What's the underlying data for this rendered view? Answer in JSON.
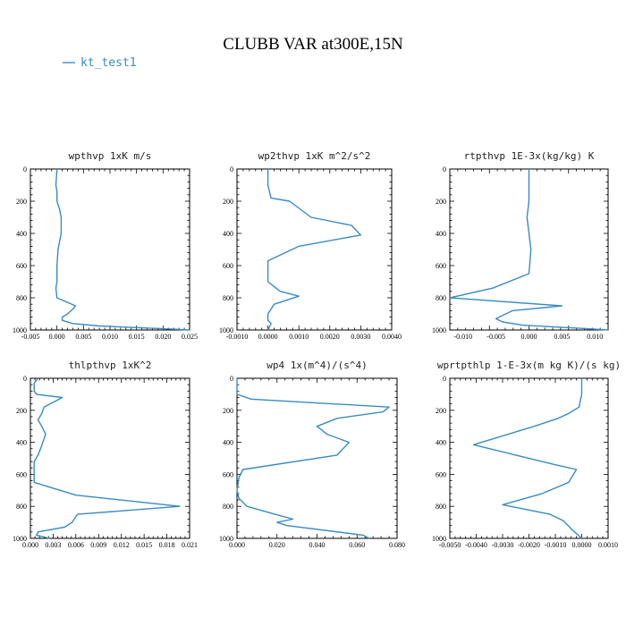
{
  "figure": {
    "title": "CLUBB VAR at300E,15N",
    "legend": {
      "label": "kt_test1",
      "color": "#3a8bc2"
    }
  },
  "chart_data": [
    {
      "type": "line",
      "title": "wpthvp  1xK m/s",
      "xlim": [
        -0.005,
        0.025
      ],
      "ylim": [
        0,
        1000
      ],
      "y_inverted": true,
      "x_ticks": [
        "-0.005",
        "0.000",
        "0.005",
        "0.010",
        "0.015",
        "0.020",
        "0.025"
      ],
      "x_tick_values": [
        -0.005,
        0.0,
        0.005,
        0.01,
        0.015,
        0.02,
        0.025
      ],
      "y_ticks": [
        "0",
        "200",
        "400",
        "600",
        "800",
        "1000"
      ],
      "y_tick_values": [
        0,
        200,
        400,
        600,
        800,
        1000
      ],
      "series": [
        {
          "name": "kt_test1",
          "x": [
            0.0,
            -0.0002,
            0.0,
            0.0,
            0.0005,
            0.0008,
            0.0008,
            0.0005,
            0.0002,
            0.0,
            0.0,
            -0.0002,
            0.0,
            0.0035,
            0.003,
            0.002,
            0.001,
            0.001,
            0.003,
            0.008,
            0.015,
            0.022,
            0.025
          ],
          "y": [
            0,
            100,
            140,
            200,
            250,
            300,
            400,
            450,
            500,
            600,
            700,
            740,
            800,
            850,
            870,
            900,
            920,
            940,
            960,
            975,
            985,
            995,
            1000
          ]
        }
      ]
    },
    {
      "type": "line",
      "title": "wp2thvp  1xK m^2/s^2",
      "xlim": [
        -0.001,
        0.004
      ],
      "ylim": [
        0,
        1000
      ],
      "y_inverted": true,
      "x_ticks": [
        "-0.0010",
        "0.0000",
        "0.0010",
        "0.0020",
        "0.0030",
        "0.0040"
      ],
      "x_tick_values": [
        -0.001,
        0.0,
        0.001,
        0.002,
        0.003,
        0.004
      ],
      "y_ticks": [
        "0",
        "200",
        "400",
        "600",
        "800",
        "1000"
      ],
      "y_tick_values": [
        0,
        200,
        400,
        600,
        800,
        1000
      ],
      "series": [
        {
          "name": "kt_test1",
          "x": [
            0.0,
            0.0,
            0.0001,
            0.0007,
            0.0014,
            0.0027,
            0.003,
            0.001,
            0.0,
            0.0,
            0.0002,
            0.0004,
            0.001,
            0.0002,
            0.0001,
            0.0,
            0.0,
            0.0001,
            0.0
          ],
          "y": [
            0,
            100,
            180,
            200,
            300,
            350,
            410,
            480,
            570,
            700,
            730,
            760,
            790,
            840,
            870,
            900,
            940,
            960,
            1000
          ]
        }
      ]
    },
    {
      "type": "line",
      "title": "rtpthvp  1E-3x(kg/kg) K",
      "xlim": [
        -0.012,
        0.012
      ],
      "ylim": [
        0,
        1000
      ],
      "y_inverted": true,
      "x_ticks": [
        "-0.010",
        "-0.005",
        "0.000",
        "0.005",
        "0.010"
      ],
      "x_tick_values": [
        -0.01,
        -0.005,
        0.0,
        0.005,
        0.01
      ],
      "y_ticks": [
        "0",
        "200",
        "400",
        "600",
        "800",
        "1000"
      ],
      "y_tick_values": [
        0,
        200,
        400,
        600,
        800,
        1000
      ],
      "series": [
        {
          "name": "kt_test1",
          "x": [
            0.0,
            0.0,
            0.0,
            -0.0003,
            0.0,
            0.0003,
            0.0,
            -0.0055,
            -0.012,
            0.005,
            -0.0025,
            -0.004,
            -0.005,
            -0.004,
            -0.001,
            0.008,
            0.012
          ],
          "y": [
            0,
            100,
            200,
            300,
            400,
            500,
            650,
            740,
            800,
            850,
            880,
            910,
            930,
            950,
            970,
            990,
            1000
          ]
        }
      ]
    },
    {
      "type": "line",
      "title": "thlpthvp  1xK^2",
      "xlim": [
        0.0,
        0.021
      ],
      "ylim": [
        0,
        1000
      ],
      "y_inverted": true,
      "x_ticks": [
        "0.000",
        "0.003",
        "0.006",
        "0.009",
        "0.012",
        "0.015",
        "0.018",
        "0.021"
      ],
      "x_tick_values": [
        0.0,
        0.003,
        0.006,
        0.009,
        0.012,
        0.015,
        0.018,
        0.021
      ],
      "y_ticks": [
        "0",
        "200",
        "400",
        "600",
        "800",
        "1000"
      ],
      "y_tick_values": [
        0,
        200,
        400,
        600,
        800,
        1000
      ],
      "series": [
        {
          "name": "kt_test1",
          "x": [
            0.001,
            0.0005,
            0.0005,
            0.0008,
            0.0042,
            0.0018,
            0.0015,
            0.001,
            0.0015,
            0.002,
            0.0015,
            0.001,
            0.0005,
            0.0005,
            0.0005,
            0.006,
            0.0197,
            0.0062,
            0.0055,
            0.0045,
            0.001,
            0.0008,
            0.0025
          ],
          "y": [
            0,
            30,
            80,
            100,
            120,
            180,
            220,
            260,
            300,
            350,
            420,
            480,
            520,
            600,
            650,
            730,
            800,
            850,
            900,
            930,
            960,
            980,
            1000
          ]
        }
      ]
    },
    {
      "type": "line",
      "title": "wp4  1x(m^4)/(s^4)",
      "xlim": [
        0.0,
        0.08
      ],
      "ylim": [
        0,
        1000
      ],
      "y_inverted": true,
      "x_ticks": [
        "0.000",
        "0.020",
        "0.040",
        "0.060",
        "0.080"
      ],
      "x_tick_values": [
        0.0,
        0.02,
        0.04,
        0.06,
        0.08
      ],
      "y_ticks": [
        "0",
        "200",
        "400",
        "600",
        "800",
        "1000"
      ],
      "y_tick_values": [
        0,
        200,
        400,
        600,
        800,
        1000
      ],
      "series": [
        {
          "name": "kt_test1",
          "x": [
            0.0,
            0.0,
            0.007,
            0.076,
            0.073,
            0.05,
            0.04,
            0.045,
            0.056,
            0.05,
            0.003,
            0.001,
            0.0,
            0.001,
            0.005,
            0.019,
            0.028,
            0.02,
            0.025,
            0.063,
            0.066
          ],
          "y": [
            0,
            100,
            130,
            180,
            210,
            250,
            300,
            350,
            400,
            480,
            570,
            620,
            700,
            750,
            800,
            850,
            880,
            900,
            920,
            980,
            1000
          ]
        }
      ]
    },
    {
      "type": "line",
      "title": "wprtpthlp  1-E-3x(m kg K)/(s kg)",
      "xlim": [
        -0.005,
        0.001
      ],
      "ylim": [
        0,
        1000
      ],
      "y_inverted": true,
      "x_ticks": [
        "-0.0050",
        "-0.0040",
        "-0.0030",
        "-0.0020",
        "-0.0010",
        "0.0000",
        "0.0010"
      ],
      "x_tick_values": [
        -0.005,
        -0.004,
        -0.003,
        -0.002,
        -0.001,
        0.0,
        0.001
      ],
      "y_ticks": [
        "0",
        "200",
        "400",
        "600",
        "800",
        "1000"
      ],
      "y_tick_values": [
        0,
        200,
        400,
        600,
        800,
        1000
      ],
      "series": [
        {
          "name": "kt_test1",
          "x": [
            0.0,
            0.0,
            -0.0001,
            -0.0005,
            -0.0009,
            -0.0018,
            -0.0041,
            -0.0025,
            -0.001,
            -0.0002,
            -0.0005,
            -0.0015,
            -0.003,
            -0.0012,
            -0.0007,
            -0.0004,
            0.0
          ],
          "y": [
            0,
            100,
            180,
            220,
            250,
            300,
            415,
            480,
            540,
            570,
            650,
            720,
            790,
            850,
            890,
            940,
            1000
          ]
        }
      ]
    }
  ]
}
